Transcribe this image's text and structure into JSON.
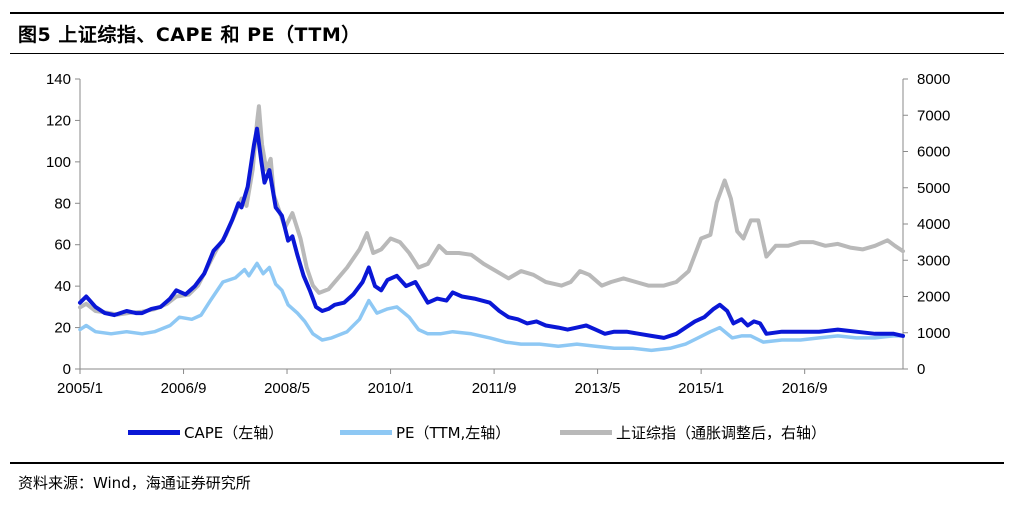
{
  "figure": {
    "title": "图5  上证综指、CAPE 和 PE（TTM）",
    "source": "资料来源：Wind，海通证券研究所"
  },
  "colors": {
    "cape": "#0a17d6",
    "pe": "#8ec8f4",
    "index": "#b9b9b9"
  },
  "chart_data": {
    "type": "line",
    "title": "图5  上证综指、CAPE 和 PE（TTM）",
    "xlabel": "",
    "ylabel": "",
    "x_tick_labels": [
      "2005/1",
      "2006/9",
      "2008/5",
      "2010/1",
      "2011/9",
      "2013/5",
      "2015/1",
      "2016/9"
    ],
    "x_tick_years": [
      2005.0,
      2006.667,
      2008.333,
      2010.0,
      2011.667,
      2013.333,
      2015.0,
      2016.667
    ],
    "x_range": [
      2005.0,
      2018.25
    ],
    "y_left": {
      "lim": [
        0,
        140
      ],
      "ticks": [
        0,
        20,
        40,
        60,
        80,
        100,
        120,
        140
      ]
    },
    "y_right": {
      "lim": [
        0,
        8000
      ],
      "ticks": [
        0,
        1000,
        2000,
        3000,
        4000,
        5000,
        6000,
        7000,
        8000
      ]
    },
    "legend_position": "bottom",
    "series": [
      {
        "name": "CAPE（左轴）",
        "axis": "left",
        "color": "#0a17d6",
        "points": [
          [
            2005.0,
            32
          ],
          [
            2005.1,
            35
          ],
          [
            2005.25,
            30
          ],
          [
            2005.4,
            27
          ],
          [
            2005.55,
            26
          ],
          [
            2005.75,
            28
          ],
          [
            2005.9,
            27
          ],
          [
            2006.0,
            27
          ],
          [
            2006.15,
            29
          ],
          [
            2006.3,
            30
          ],
          [
            2006.45,
            34
          ],
          [
            2006.55,
            38
          ],
          [
            2006.7,
            36
          ],
          [
            2006.85,
            40
          ],
          [
            2007.0,
            46
          ],
          [
            2007.15,
            57
          ],
          [
            2007.3,
            62
          ],
          [
            2007.45,
            72
          ],
          [
            2007.55,
            80
          ],
          [
            2007.6,
            78
          ],
          [
            2007.7,
            88
          ],
          [
            2007.8,
            108
          ],
          [
            2007.85,
            116
          ],
          [
            2007.92,
            100
          ],
          [
            2007.97,
            90
          ],
          [
            2008.05,
            96
          ],
          [
            2008.15,
            78
          ],
          [
            2008.25,
            74
          ],
          [
            2008.35,
            62
          ],
          [
            2008.42,
            64
          ],
          [
            2008.5,
            55
          ],
          [
            2008.6,
            45
          ],
          [
            2008.7,
            38
          ],
          [
            2008.8,
            30
          ],
          [
            2008.9,
            28
          ],
          [
            2009.0,
            29
          ],
          [
            2009.1,
            31
          ],
          [
            2009.25,
            32
          ],
          [
            2009.4,
            36
          ],
          [
            2009.55,
            42
          ],
          [
            2009.65,
            49
          ],
          [
            2009.75,
            40
          ],
          [
            2009.85,
            38
          ],
          [
            2009.95,
            43
          ],
          [
            2010.1,
            45
          ],
          [
            2010.25,
            40
          ],
          [
            2010.4,
            42
          ],
          [
            2010.5,
            37
          ],
          [
            2010.6,
            32
          ],
          [
            2010.75,
            34
          ],
          [
            2010.9,
            33
          ],
          [
            2011.0,
            37
          ],
          [
            2011.15,
            35
          ],
          [
            2011.35,
            34
          ],
          [
            2011.6,
            32
          ],
          [
            2011.75,
            28
          ],
          [
            2011.9,
            25
          ],
          [
            2012.05,
            24
          ],
          [
            2012.2,
            22
          ],
          [
            2012.35,
            23
          ],
          [
            2012.5,
            21
          ],
          [
            2012.7,
            20
          ],
          [
            2012.85,
            19
          ],
          [
            2013.0,
            20
          ],
          [
            2013.15,
            21
          ],
          [
            2013.3,
            19
          ],
          [
            2013.45,
            17
          ],
          [
            2013.6,
            18
          ],
          [
            2013.8,
            18
          ],
          [
            2014.0,
            17
          ],
          [
            2014.2,
            16
          ],
          [
            2014.4,
            15
          ],
          [
            2014.6,
            17
          ],
          [
            2014.75,
            20
          ],
          [
            2014.9,
            23
          ],
          [
            2015.05,
            25
          ],
          [
            2015.2,
            29
          ],
          [
            2015.3,
            31
          ],
          [
            2015.42,
            28
          ],
          [
            2015.52,
            22
          ],
          [
            2015.65,
            24
          ],
          [
            2015.75,
            21
          ],
          [
            2015.85,
            23
          ],
          [
            2015.95,
            22
          ],
          [
            2016.05,
            17
          ],
          [
            2016.3,
            18
          ],
          [
            2016.6,
            18
          ],
          [
            2016.9,
            18
          ],
          [
            2017.2,
            19
          ],
          [
            2017.5,
            18
          ],
          [
            2017.8,
            17
          ],
          [
            2018.1,
            17
          ],
          [
            2018.25,
            16
          ]
        ]
      },
      {
        "name": "PE（TTM,左轴）",
        "axis": "left",
        "color": "#8ec8f4",
        "points": [
          [
            2005.0,
            19
          ],
          [
            2005.1,
            21
          ],
          [
            2005.25,
            18
          ],
          [
            2005.5,
            17
          ],
          [
            2005.75,
            18
          ],
          [
            2006.0,
            17
          ],
          [
            2006.2,
            18
          ],
          [
            2006.45,
            21
          ],
          [
            2006.6,
            25
          ],
          [
            2006.8,
            24
          ],
          [
            2006.95,
            26
          ],
          [
            2007.1,
            33
          ],
          [
            2007.3,
            42
          ],
          [
            2007.5,
            44
          ],
          [
            2007.65,
            48
          ],
          [
            2007.72,
            45
          ],
          [
            2007.85,
            51
          ],
          [
            2007.95,
            46
          ],
          [
            2008.05,
            49
          ],
          [
            2008.15,
            41
          ],
          [
            2008.25,
            38
          ],
          [
            2008.35,
            31
          ],
          [
            2008.5,
            27
          ],
          [
            2008.62,
            23
          ],
          [
            2008.75,
            17
          ],
          [
            2008.9,
            14
          ],
          [
            2009.05,
            15
          ],
          [
            2009.3,
            18
          ],
          [
            2009.5,
            24
          ],
          [
            2009.65,
            33
          ],
          [
            2009.78,
            27
          ],
          [
            2009.95,
            29
          ],
          [
            2010.1,
            30
          ],
          [
            2010.3,
            25
          ],
          [
            2010.45,
            19
          ],
          [
            2010.6,
            17
          ],
          [
            2010.8,
            17
          ],
          [
            2011.0,
            18
          ],
          [
            2011.3,
            17
          ],
          [
            2011.6,
            15
          ],
          [
            2011.85,
            13
          ],
          [
            2012.1,
            12
          ],
          [
            2012.4,
            12
          ],
          [
            2012.7,
            11
          ],
          [
            2013.0,
            12
          ],
          [
            2013.3,
            11
          ],
          [
            2013.6,
            10
          ],
          [
            2013.9,
            10
          ],
          [
            2014.2,
            9
          ],
          [
            2014.5,
            10
          ],
          [
            2014.75,
            12
          ],
          [
            2014.95,
            15
          ],
          [
            2015.15,
            18
          ],
          [
            2015.3,
            20
          ],
          [
            2015.5,
            15
          ],
          [
            2015.65,
            16
          ],
          [
            2015.8,
            16
          ],
          [
            2016.0,
            13
          ],
          [
            2016.3,
            14
          ],
          [
            2016.6,
            14
          ],
          [
            2016.9,
            15
          ],
          [
            2017.2,
            16
          ],
          [
            2017.5,
            15
          ],
          [
            2017.8,
            15
          ],
          [
            2018.1,
            16
          ],
          [
            2018.25,
            16
          ]
        ]
      },
      {
        "name": "上证综指（通胀调整后，右轴）",
        "axis": "right",
        "color": "#b9b9b9",
        "points": [
          [
            2005.0,
            1700
          ],
          [
            2005.1,
            1800
          ],
          [
            2005.25,
            1600
          ],
          [
            2005.45,
            1550
          ],
          [
            2005.6,
            1500
          ],
          [
            2005.8,
            1550
          ],
          [
            2006.0,
            1580
          ],
          [
            2006.2,
            1650
          ],
          [
            2006.4,
            1800
          ],
          [
            2006.55,
            2000
          ],
          [
            2006.75,
            2050
          ],
          [
            2006.9,
            2300
          ],
          [
            2007.05,
            2800
          ],
          [
            2007.2,
            3300
          ],
          [
            2007.35,
            3700
          ],
          [
            2007.5,
            4300
          ],
          [
            2007.6,
            4700
          ],
          [
            2007.68,
            4500
          ],
          [
            2007.78,
            5500
          ],
          [
            2007.85,
            6800
          ],
          [
            2007.88,
            7250
          ],
          [
            2007.93,
            6200
          ],
          [
            2008.0,
            5500
          ],
          [
            2008.07,
            5800
          ],
          [
            2008.12,
            4800
          ],
          [
            2008.2,
            4400
          ],
          [
            2008.3,
            3900
          ],
          [
            2008.42,
            4300
          ],
          [
            2008.55,
            3600
          ],
          [
            2008.65,
            2800
          ],
          [
            2008.75,
            2300
          ],
          [
            2008.85,
            2100
          ],
          [
            2009.0,
            2200
          ],
          [
            2009.15,
            2500
          ],
          [
            2009.3,
            2800
          ],
          [
            2009.5,
            3300
          ],
          [
            2009.62,
            3750
          ],
          [
            2009.72,
            3200
          ],
          [
            2009.85,
            3300
          ],
          [
            2010.0,
            3600
          ],
          [
            2010.15,
            3500
          ],
          [
            2010.3,
            3200
          ],
          [
            2010.45,
            2800
          ],
          [
            2010.6,
            2900
          ],
          [
            2010.78,
            3400
          ],
          [
            2010.9,
            3200
          ],
          [
            2011.1,
            3200
          ],
          [
            2011.3,
            3150
          ],
          [
            2011.5,
            2900
          ],
          [
            2011.7,
            2700
          ],
          [
            2011.9,
            2500
          ],
          [
            2012.1,
            2700
          ],
          [
            2012.3,
            2600
          ],
          [
            2012.5,
            2400
          ],
          [
            2012.75,
            2300
          ],
          [
            2012.9,
            2400
          ],
          [
            2013.05,
            2700
          ],
          [
            2013.2,
            2600
          ],
          [
            2013.4,
            2300
          ],
          [
            2013.55,
            2400
          ],
          [
            2013.75,
            2500
          ],
          [
            2013.95,
            2400
          ],
          [
            2014.15,
            2300
          ],
          [
            2014.4,
            2300
          ],
          [
            2014.6,
            2400
          ],
          [
            2014.8,
            2700
          ],
          [
            2015.0,
            3600
          ],
          [
            2015.15,
            3700
          ],
          [
            2015.25,
            4600
          ],
          [
            2015.38,
            5200
          ],
          [
            2015.48,
            4700
          ],
          [
            2015.58,
            3800
          ],
          [
            2015.68,
            3600
          ],
          [
            2015.8,
            4100
          ],
          [
            2015.92,
            4100
          ],
          [
            2016.05,
            3100
          ],
          [
            2016.2,
            3400
          ],
          [
            2016.4,
            3400
          ],
          [
            2016.6,
            3500
          ],
          [
            2016.8,
            3500
          ],
          [
            2017.0,
            3400
          ],
          [
            2017.2,
            3450
          ],
          [
            2017.4,
            3350
          ],
          [
            2017.6,
            3300
          ],
          [
            2017.8,
            3400
          ],
          [
            2018.0,
            3550
          ],
          [
            2018.12,
            3400
          ],
          [
            2018.25,
            3250
          ]
        ]
      }
    ]
  }
}
